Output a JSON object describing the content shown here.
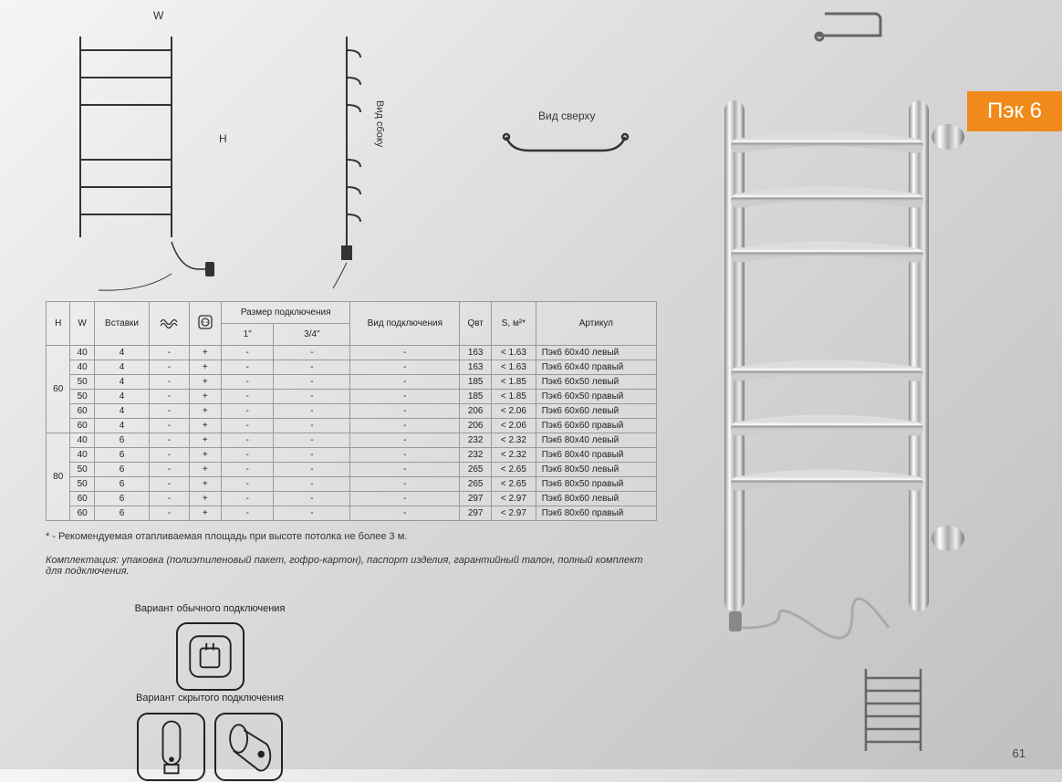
{
  "product": {
    "badge": "Пэк 6",
    "badge_bg": "#f08a1a"
  },
  "page_number": "61",
  "diagrams": {
    "front": {
      "w_label": "W",
      "h_label": "H"
    },
    "side_label": "Вид сбоку",
    "top_label": "Вид сверху"
  },
  "table": {
    "headers": {
      "h": "H",
      "w": "W",
      "inserts": "Вставки",
      "conn_size": "Размер подключения",
      "conn_1": "1\"",
      "conn_34": "3/4\"",
      "conn_type": "Вид подключения",
      "q": "Qвт",
      "s": "S, м²*",
      "sku": "Артикул"
    },
    "groups": [
      {
        "h": "60",
        "rows": [
          {
            "w": "40",
            "ins": "4",
            "a": "-",
            "b": "+",
            "c1": "-",
            "c34": "-",
            "ct": "-",
            "q": "163",
            "s": "< 1.63",
            "sku": "Пэк6 60х40 левый"
          },
          {
            "w": "40",
            "ins": "4",
            "a": "-",
            "b": "+",
            "c1": "-",
            "c34": "-",
            "ct": "-",
            "q": "163",
            "s": "< 1.63",
            "sku": "Пэк6 60х40 правый"
          },
          {
            "w": "50",
            "ins": "4",
            "a": "-",
            "b": "+",
            "c1": "-",
            "c34": "-",
            "ct": "-",
            "q": "185",
            "s": "< 1.85",
            "sku": "Пэк6 60х50 левый"
          },
          {
            "w": "50",
            "ins": "4",
            "a": "-",
            "b": "+",
            "c1": "-",
            "c34": "-",
            "ct": "-",
            "q": "185",
            "s": "< 1.85",
            "sku": "Пэк6 60х50 правый"
          },
          {
            "w": "60",
            "ins": "4",
            "a": "-",
            "b": "+",
            "c1": "-",
            "c34": "-",
            "ct": "-",
            "q": "206",
            "s": "< 2.06",
            "sku": "Пэк6 60х60 левый"
          },
          {
            "w": "60",
            "ins": "4",
            "a": "-",
            "b": "+",
            "c1": "-",
            "c34": "-",
            "ct": "-",
            "q": "206",
            "s": "< 2.06",
            "sku": "Пэк6 60х60 правый"
          }
        ]
      },
      {
        "h": "80",
        "rows": [
          {
            "w": "40",
            "ins": "6",
            "a": "-",
            "b": "+",
            "c1": "-",
            "c34": "-",
            "ct": "-",
            "q": "232",
            "s": "< 2.32",
            "sku": "Пэк6 80х40 левый"
          },
          {
            "w": "40",
            "ins": "6",
            "a": "-",
            "b": "+",
            "c1": "-",
            "c34": "-",
            "ct": "-",
            "q": "232",
            "s": "< 2.32",
            "sku": "Пэк6 80х40 правый"
          },
          {
            "w": "50",
            "ins": "6",
            "a": "-",
            "b": "+",
            "c1": "-",
            "c34": "-",
            "ct": "-",
            "q": "265",
            "s": "< 2.65",
            "sku": "Пэк6 80х50 левый"
          },
          {
            "w": "50",
            "ins": "6",
            "a": "-",
            "b": "+",
            "c1": "-",
            "c34": "-",
            "ct": "-",
            "q": "265",
            "s": "< 2.65",
            "sku": "Пэк6 80х50 правый"
          },
          {
            "w": "60",
            "ins": "6",
            "a": "-",
            "b": "+",
            "c1": "-",
            "c34": "-",
            "ct": "-",
            "q": "297",
            "s": "< 2.97",
            "sku": "Пэк6 80х60 левый"
          },
          {
            "w": "60",
            "ins": "6",
            "a": "-",
            "b": "+",
            "c1": "-",
            "c34": "-",
            "ct": "-",
            "q": "297",
            "s": "< 2.97",
            "sku": "Пэк6 80х60 правый"
          }
        ]
      }
    ]
  },
  "footnote": "*  - Рекомендуемая отапливаемая площадь при высоте потолка не более 3 м.",
  "notes": "Комплектация: упаковка (полиэтиленовый пакет, гофро-картон), паспорт изделия, гарантийный талон, полный комплект для подключения.",
  "variants": {
    "standard": "Вариант обычного подключения",
    "hidden": "Вариант скрытого подключения"
  }
}
